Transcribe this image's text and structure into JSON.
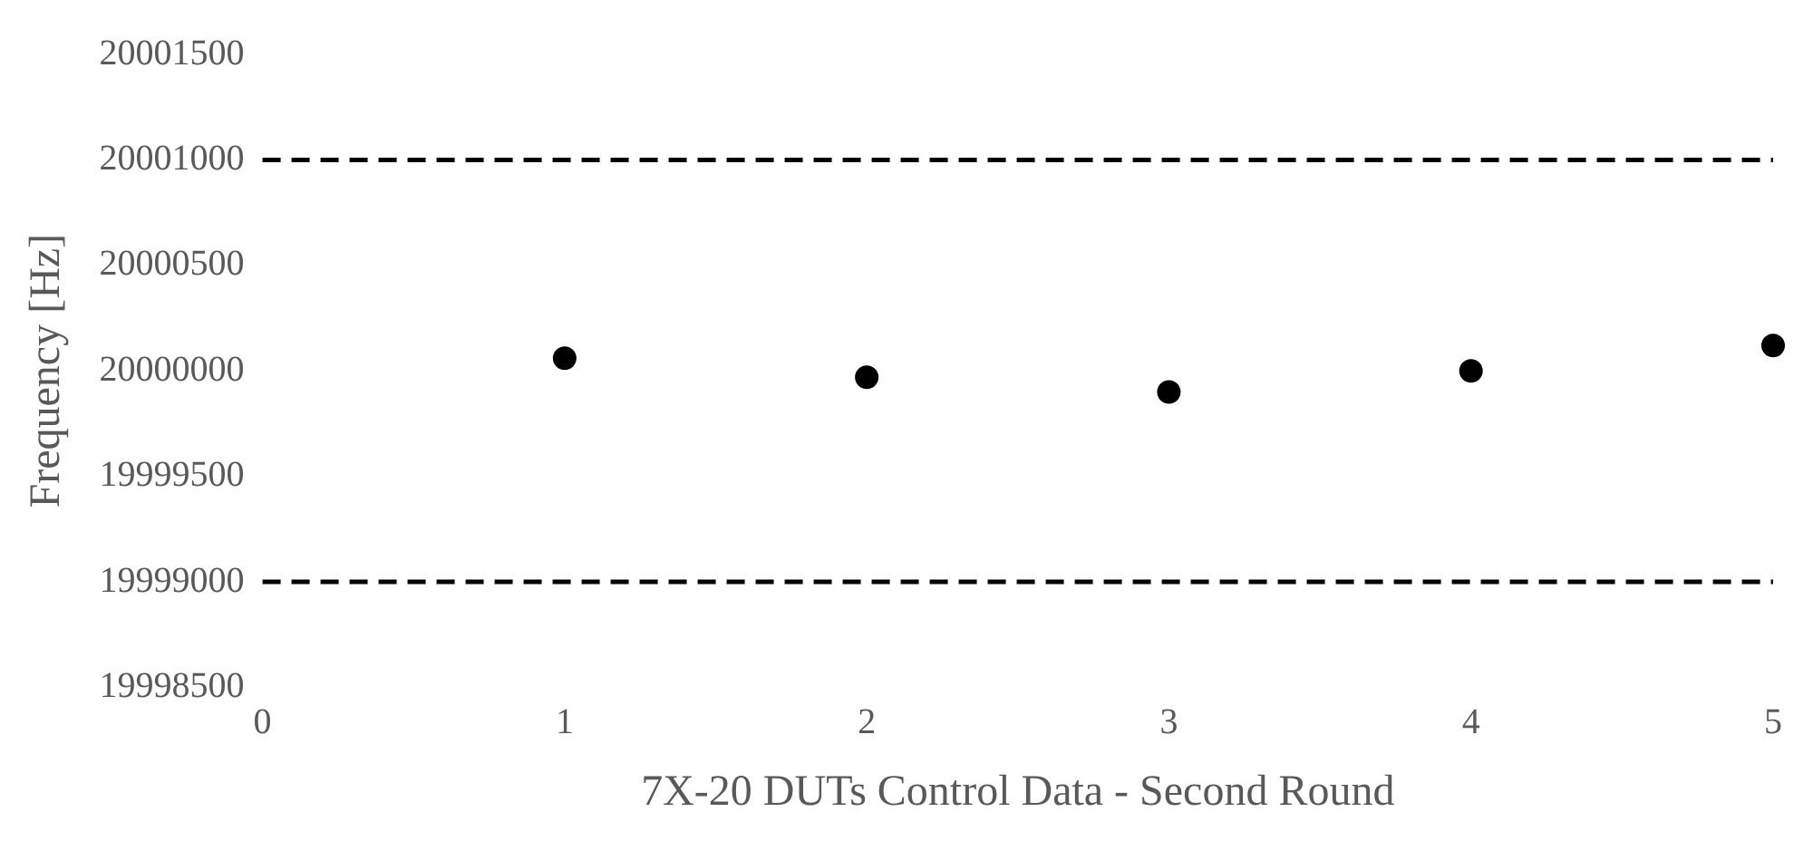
{
  "chart_data": {
    "type": "scatter",
    "xlabel": "7X-20 DUTs Control Data - Second Round",
    "ylabel": "Frequency [Hz]",
    "x": [
      1,
      2,
      3,
      4,
      5
    ],
    "series": [
      {
        "color": "#000000",
        "values": [
          20000060,
          19999970,
          19999900,
          20000000,
          20000120
        ]
      }
    ],
    "xlim": [
      0,
      5
    ],
    "xticks": [
      0,
      1,
      2,
      3,
      4,
      5
    ],
    "ylim": [
      19998500,
      20001500
    ],
    "yticks": [
      19998500,
      19999000,
      19999500,
      20000000,
      20000500,
      20001000,
      20001500
    ],
    "ref_lines": [
      {
        "axis": "y",
        "value": 20001000,
        "color": "#000000",
        "line_style": "dashed"
      },
      {
        "axis": "y",
        "value": 19999000,
        "color": "#000000",
        "line_style": "dashed"
      }
    ],
    "grid": false,
    "legend": false,
    "marker": "circle"
  }
}
